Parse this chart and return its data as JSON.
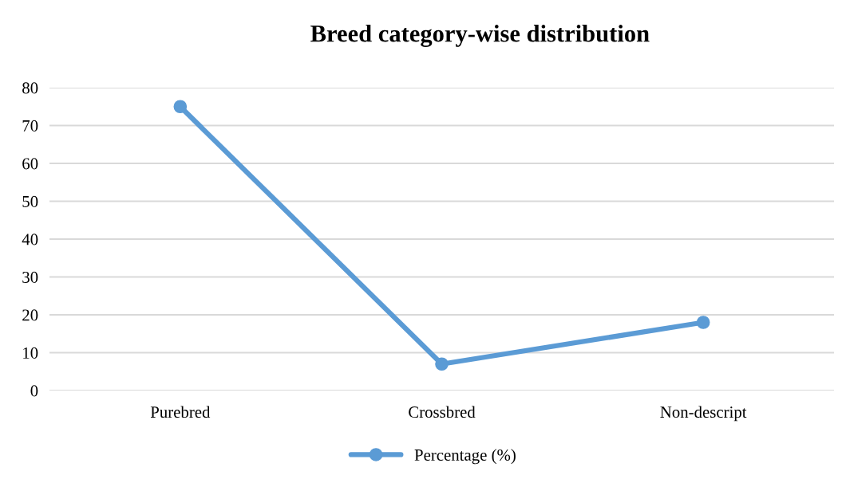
{
  "chart_data": {
    "type": "line",
    "title": "Breed category-wise distribution",
    "categories": [
      "Purebred",
      "Crossbred",
      "Non-descript"
    ],
    "series": [
      {
        "name": "Percentage (%)",
        "color": "#5b9bd5",
        "values": [
          75,
          7,
          18
        ]
      }
    ],
    "ylim": [
      0,
      80
    ],
    "yticks": [
      0,
      10,
      20,
      30,
      40,
      50,
      60,
      70,
      80
    ],
    "grid": "y",
    "legend": "bottom",
    "marker": "circle",
    "line_style": "solid"
  }
}
